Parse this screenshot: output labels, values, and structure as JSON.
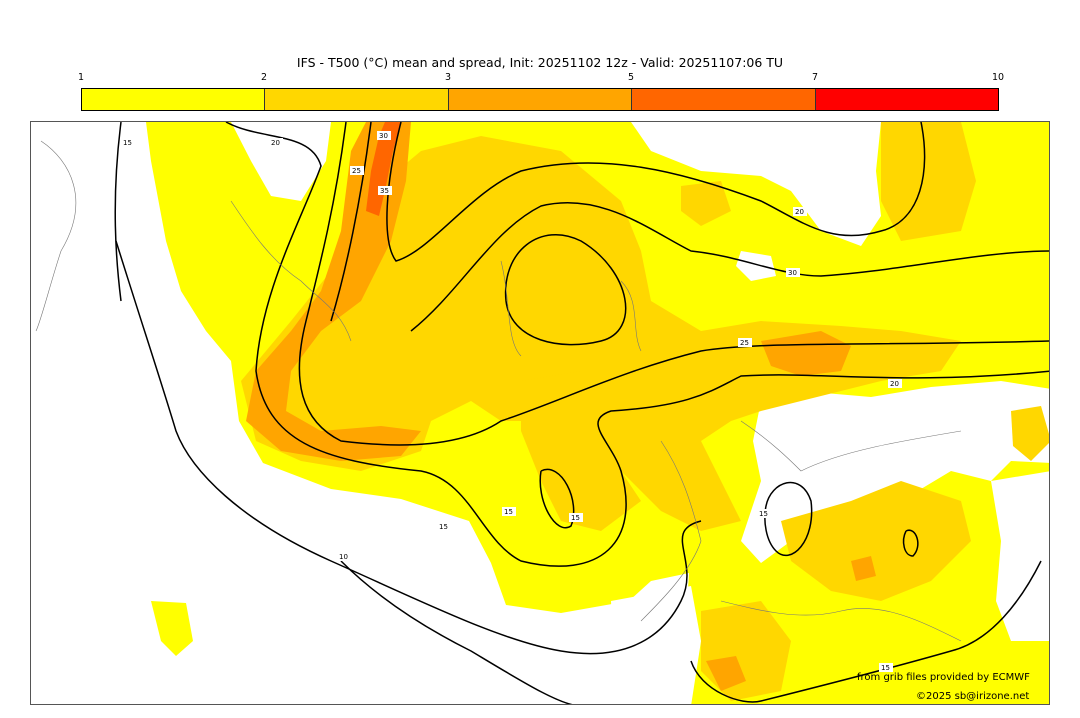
{
  "title": "IFS - T500 (°C) mean and spread, Init: 20251102 12z - Valid: 20251107:06 TU",
  "colorbar": {
    "ticks": [
      "1",
      "2",
      "3",
      "5",
      "7",
      "10"
    ],
    "colors": [
      "#ffff00",
      "#ffd700",
      "#ffa500",
      "#ff6600",
      "#ff0000"
    ]
  },
  "contour_labels": [
    "20",
    "25",
    "30",
    "35",
    "30",
    "20",
    "25",
    "20",
    "15",
    "15",
    "15",
    "10",
    "15",
    "15",
    "15"
  ],
  "credits": {
    "source": "from grib files provided by ECMWF",
    "copyright": "©2025 sb@irizone.net"
  }
}
